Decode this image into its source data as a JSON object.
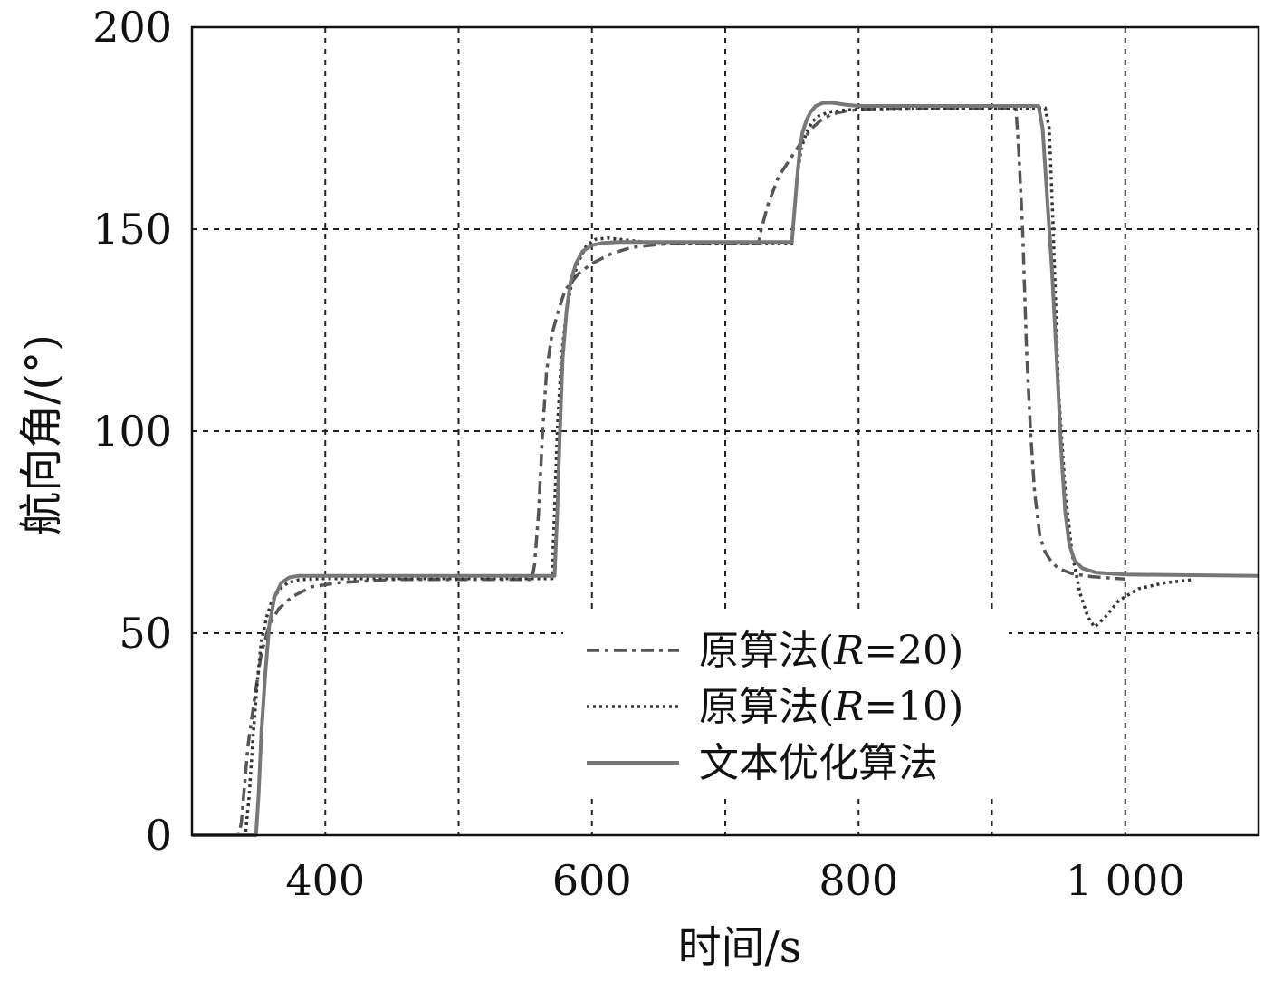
{
  "chart_data": {
    "type": "line",
    "title": "",
    "xlabel": "时间/s",
    "ylabel": "航向角/(°)",
    "xlim": [
      300,
      1100
    ],
    "ylim": [
      0,
      200
    ],
    "xticks": [
      400,
      600,
      800,
      1000
    ],
    "xtick_labels": [
      "400",
      "600",
      "800",
      "1 000"
    ],
    "yticks": [
      0,
      50,
      100,
      150,
      200
    ],
    "ytick_labels": [
      "0",
      "50",
      "100",
      "150",
      "200"
    ],
    "grid": true,
    "legend_position": "center-bottom",
    "series": [
      {
        "name": "原算法(R=20)",
        "style": "dashdot",
        "color": "#555555",
        "x": [
          300,
          335,
          337,
          342,
          347,
          352,
          358,
          365,
          375,
          390,
          410,
          435,
          450,
          555,
          557,
          560,
          563,
          566,
          570,
          575,
          580,
          590,
          600,
          615,
          630,
          650,
          665,
          725,
          727,
          732,
          740,
          750,
          758,
          765,
          772,
          780,
          790,
          800,
          815,
          830,
          855,
          918,
          920,
          923,
          926,
          929,
          932,
          936,
          940,
          945,
          950,
          960,
          975,
          990,
          1000
        ],
        "y": [
          0,
          0,
          3,
          22,
          34,
          45,
          52,
          56,
          59,
          61.5,
          62.5,
          63,
          63.3,
          63.3,
          67,
          80,
          100,
          115,
          124,
          130,
          135,
          139,
          141.5,
          144,
          145.5,
          146.2,
          146.5,
          146.5,
          150,
          156,
          163,
          168,
          172,
          175,
          177,
          178.5,
          179.2,
          179.6,
          179.8,
          180,
          180,
          180,
          170,
          150,
          120,
          100,
          85,
          74,
          70,
          67.5,
          66,
          64.7,
          64,
          63.6,
          63.4
        ]
      },
      {
        "name": "原算法(R=10)",
        "style": "dotted",
        "color": "#333333",
        "x": [
          300,
          340,
          343,
          346,
          349,
          352,
          356,
          360,
          366,
          372,
          380,
          395,
          570,
          572,
          574,
          577,
          581,
          585,
          590,
          596,
          603,
          612,
          625,
          640,
          665,
          750,
          752,
          754,
          757,
          761,
          765,
          770,
          778,
          790,
          810,
          850,
          940,
          943,
          946,
          950,
          955,
          960,
          966,
          972,
          977,
          985,
          995,
          1010,
          1030,
          1050
        ],
        "y": [
          0,
          0,
          10,
          25,
          38,
          48,
          54,
          58,
          61,
          62.5,
          63.2,
          63.5,
          63.5,
          80,
          100,
          118,
          130,
          137,
          142,
          146,
          147.5,
          147.8,
          147.3,
          146.8,
          146.5,
          146.5,
          155,
          163,
          170,
          174,
          176.5,
          178,
          179,
          179.5,
          179.8,
          180,
          180,
          175,
          150,
          110,
          85,
          70,
          60,
          54,
          51.5,
          54,
          58,
          61,
          62.5,
          63.2
        ]
      },
      {
        "name": "文本优化算法",
        "style": "solid",
        "color": "#777777",
        "x": [
          300,
          348,
          350,
          352,
          355,
          358,
          362,
          367,
          373,
          380,
          572,
          574,
          576,
          578,
          581,
          584,
          588,
          593,
          600,
          608,
          620,
          650,
          750,
          752,
          754,
          756,
          758,
          761,
          764,
          768,
          773,
          780,
          790,
          800,
          935,
          938,
          941,
          945,
          949,
          952,
          955,
          958,
          962,
          968,
          978,
          1000,
          1100
        ],
        "y": [
          0,
          0,
          10,
          25,
          40,
          52,
          59,
          62.5,
          63.8,
          64.2,
          64.2,
          80,
          100,
          118,
          130,
          137,
          141.5,
          144.5,
          146,
          146.6,
          146.8,
          146.8,
          146.8,
          155,
          163,
          170,
          174,
          177,
          179,
          180.5,
          181.2,
          181.3,
          180.8,
          180.5,
          180.5,
          175,
          160,
          140,
          115,
          95,
          80,
          72,
          68,
          66,
          65,
          64.5,
          64.2
        ]
      }
    ]
  }
}
